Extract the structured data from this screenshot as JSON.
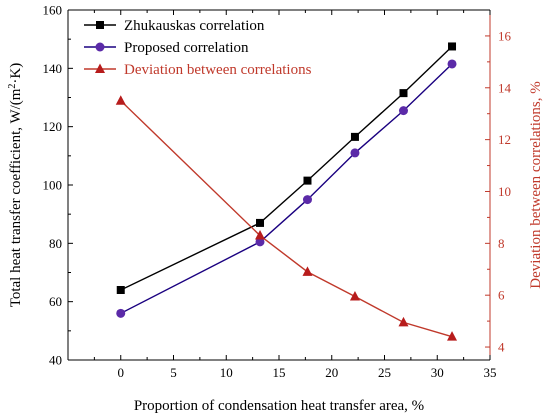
{
  "chart_data": {
    "type": "line",
    "xlabel": "Proportion of condensation heat transfer area, %",
    "ylabel_left": "Total heat transfer coefficient, W/(m",
    "ylabel_left_sup": "2",
    "ylabel_left_tail": "·K)",
    "ylabel_right": "Deviation between correlations, %",
    "xlim": [
      -5,
      35
    ],
    "ylim_left": [
      40,
      160
    ],
    "ylim_right": [
      3.5,
      17
    ],
    "xticks": [
      "0",
      "5",
      "10",
      "15",
      "20",
      "25",
      "30",
      "35"
    ],
    "yticks_left": [
      "40",
      "60",
      "80",
      "100",
      "120",
      "140",
      "160"
    ],
    "yticks_right": [
      "4",
      "6",
      "8",
      "10",
      "12",
      "14",
      "16"
    ],
    "legend_position": "top-left",
    "grid": false,
    "series": [
      {
        "name": "Zhukauskas correlation",
        "axis": "left",
        "marker": "square",
        "color": "#000000",
        "x": [
          0,
          13.2,
          17.7,
          22.2,
          26.8,
          31.4
        ],
        "y": [
          64,
          87,
          101.5,
          116.5,
          131.5,
          147.5
        ]
      },
      {
        "name": "Proposed correlation",
        "axis": "left",
        "marker": "circle",
        "color": "#1a0080",
        "marker_color": "#5b2aa8",
        "x": [
          0,
          13.2,
          17.7,
          22.2,
          26.8,
          31.4
        ],
        "y": [
          56,
          80.5,
          95,
          111,
          125.5,
          141.5
        ]
      },
      {
        "name": "Deviation between correlations",
        "axis": "right",
        "marker": "triangle",
        "color": "#c0392b",
        "marker_color": "#b71c1c",
        "x": [
          0,
          13.2,
          17.7,
          22.2,
          26.8,
          31.4
        ],
        "y": [
          13.5,
          8.3,
          6.9,
          5.95,
          4.95,
          4.4
        ]
      }
    ]
  }
}
